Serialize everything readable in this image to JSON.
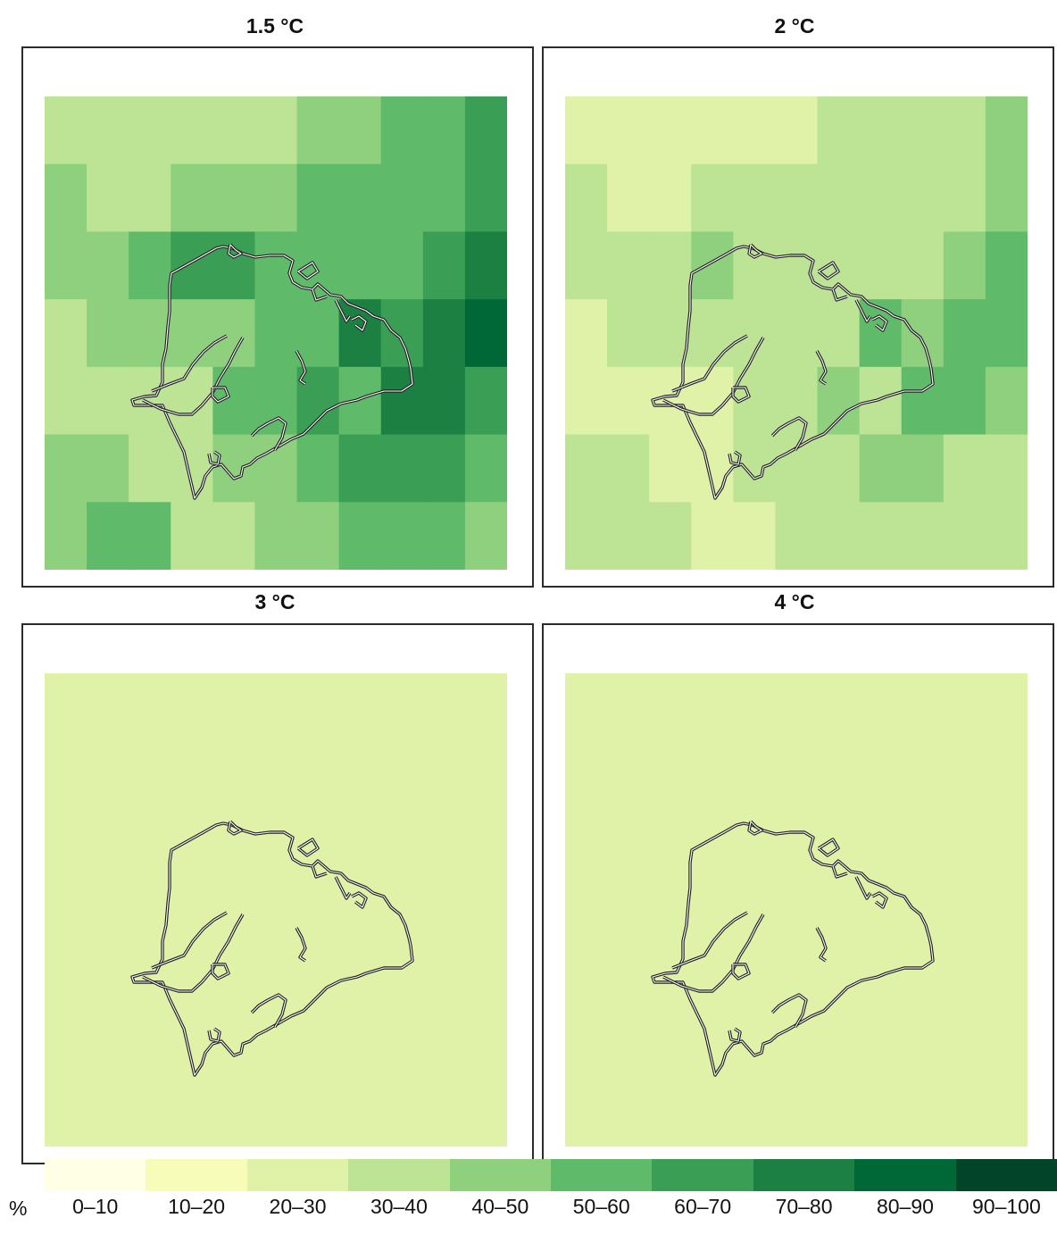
{
  "legend": {
    "unit": "%",
    "bins": [
      {
        "label": "0–10",
        "color": "#ffffe5"
      },
      {
        "label": "10–20",
        "color": "#f7fcb9"
      },
      {
        "label": "20–30",
        "color": "#dff2a8"
      },
      {
        "label": "30–40",
        "color": "#bde395"
      },
      {
        "label": "40–50",
        "color": "#8fd07f"
      },
      {
        "label": "50–60",
        "color": "#5fba69"
      },
      {
        "label": "60–70",
        "color": "#3a9f55"
      },
      {
        "label": "70–80",
        "color": "#1d8043"
      },
      {
        "label": "80–90",
        "color": "#006837"
      },
      {
        "label": "90–100",
        "color": "#00452a"
      }
    ]
  },
  "panels": [
    {
      "title": "1.5 °C",
      "grid": [
        [
          3,
          3,
          3,
          3,
          3,
          3,
          4,
          4,
          5,
          5,
          6
        ],
        [
          4,
          3,
          3,
          4,
          4,
          4,
          5,
          5,
          5,
          5,
          6
        ],
        [
          4,
          4,
          5,
          6,
          6,
          5,
          5,
          5,
          5,
          6,
          7
        ],
        [
          3,
          4,
          4,
          4,
          4,
          5,
          5,
          7,
          6,
          7,
          8
        ],
        [
          3,
          3,
          3,
          3,
          5,
          5,
          6,
          5,
          7,
          7,
          6
        ],
        [
          4,
          4,
          3,
          3,
          4,
          4,
          5,
          6,
          6,
          6,
          5
        ],
        [
          4,
          5,
          5,
          3,
          3,
          4,
          4,
          5,
          5,
          5,
          4
        ]
      ]
    },
    {
      "title": "2 °C",
      "grid": [
        [
          2,
          2,
          2,
          2,
          2,
          2,
          3,
          3,
          3,
          3,
          4
        ],
        [
          3,
          2,
          2,
          3,
          3,
          3,
          3,
          3,
          3,
          3,
          4
        ],
        [
          3,
          3,
          3,
          4,
          3,
          3,
          3,
          3,
          3,
          4,
          5
        ],
        [
          2,
          3,
          3,
          3,
          3,
          3,
          3,
          5,
          4,
          5,
          5
        ],
        [
          2,
          2,
          2,
          2,
          3,
          3,
          4,
          3,
          5,
          5,
          4
        ],
        [
          3,
          3,
          2,
          2,
          3,
          3,
          3,
          4,
          4,
          3,
          3
        ],
        [
          3,
          3,
          3,
          2,
          2,
          3,
          3,
          3,
          3,
          3,
          3
        ]
      ]
    },
    {
      "title": "3 °C",
      "grid": [
        [
          2,
          2,
          2,
          2,
          2,
          2,
          2,
          2,
          2,
          2,
          2
        ],
        [
          2,
          2,
          2,
          2,
          2,
          2,
          2,
          2,
          2,
          2,
          2
        ],
        [
          2,
          2,
          2,
          2,
          2,
          2,
          2,
          2,
          2,
          2,
          2
        ],
        [
          2,
          2,
          2,
          2,
          2,
          2,
          2,
          2,
          2,
          2,
          2
        ],
        [
          2,
          2,
          2,
          2,
          2,
          2,
          2,
          2,
          2,
          2,
          2
        ],
        [
          2,
          2,
          2,
          2,
          2,
          2,
          2,
          2,
          2,
          2,
          2
        ],
        [
          2,
          2,
          2,
          2,
          2,
          2,
          2,
          2,
          2,
          2,
          2
        ]
      ]
    },
    {
      "title": "4 °C",
      "grid": [
        [
          2,
          2,
          2,
          2,
          2,
          2,
          2,
          2,
          2,
          2,
          2
        ],
        [
          2,
          2,
          2,
          2,
          2,
          2,
          2,
          2,
          2,
          2,
          2
        ],
        [
          2,
          2,
          2,
          2,
          2,
          2,
          2,
          2,
          2,
          2,
          2
        ],
        [
          2,
          2,
          2,
          2,
          2,
          2,
          2,
          2,
          2,
          2,
          2
        ],
        [
          2,
          2,
          2,
          2,
          2,
          2,
          2,
          2,
          2,
          2,
          2
        ],
        [
          2,
          2,
          2,
          2,
          2,
          2,
          2,
          2,
          2,
          2,
          2
        ],
        [
          2,
          2,
          2,
          2,
          2,
          2,
          2,
          2,
          2,
          2,
          2
        ]
      ]
    }
  ]
}
